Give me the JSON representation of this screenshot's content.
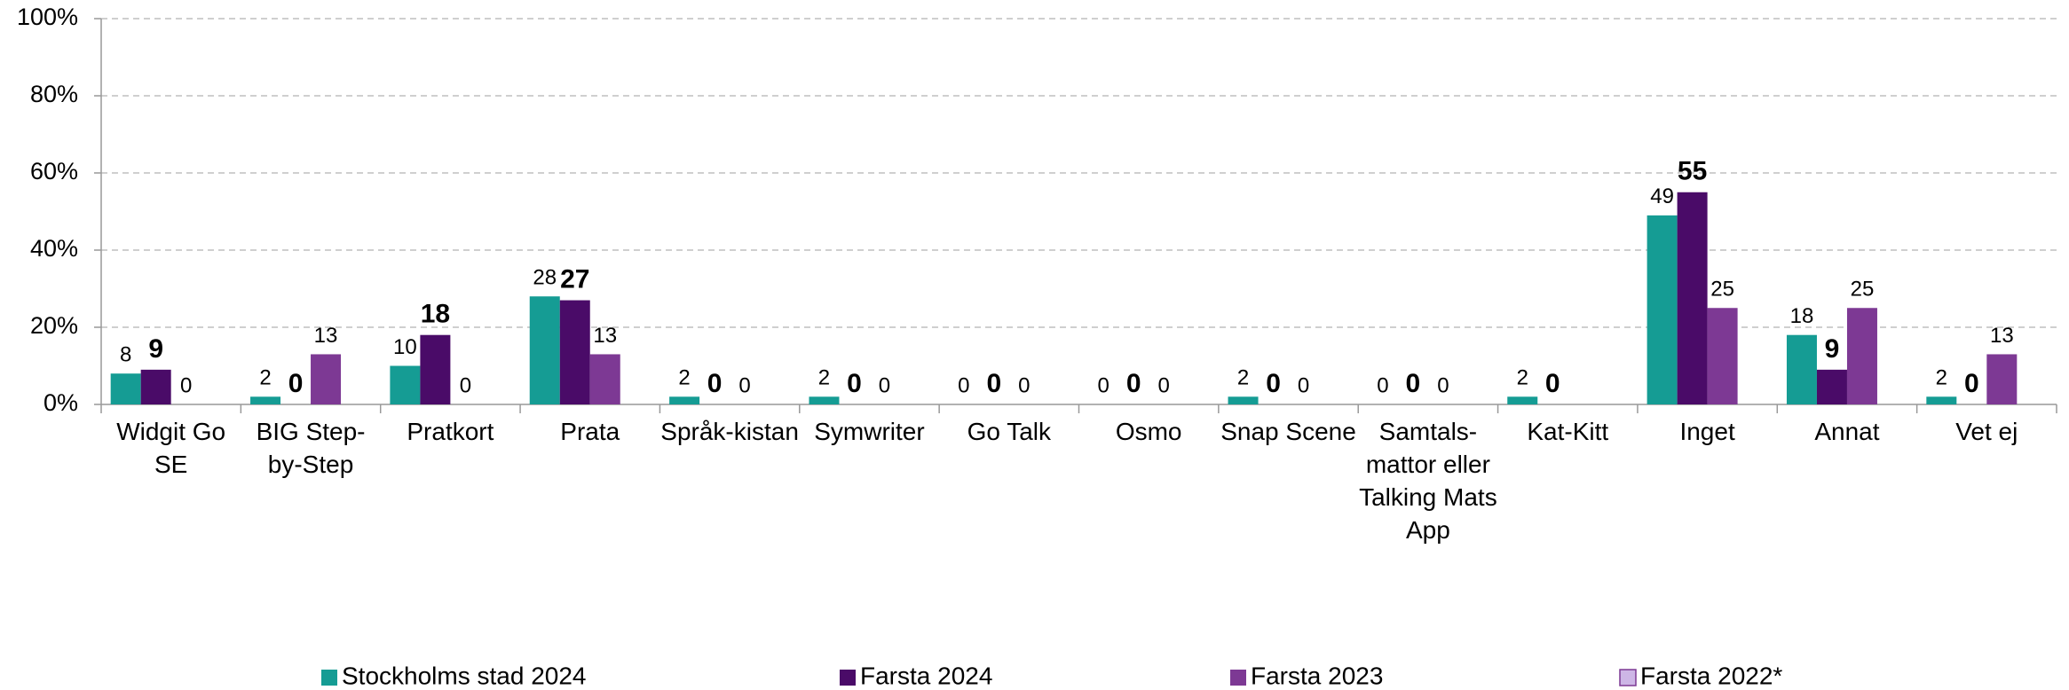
{
  "chart_data": {
    "type": "bar",
    "categories": [
      "Widgit Go SE",
      "BIG Step-by-Step",
      "Pratkort",
      "Prata",
      "Språk-kistan",
      "Symwriter",
      "Go Talk",
      "Osmo",
      "Snap Scene",
      "Samtals-mattor eller Talking Mats App",
      "Kat-Kitt",
      "Inget",
      "Annat",
      "Vet ej"
    ],
    "series": [
      {
        "name": "Stockholms stad 2024",
        "color": "#159c94",
        "values": [
          8,
          2,
          10,
          28,
          2,
          2,
          0,
          0,
          2,
          0,
          2,
          49,
          18,
          2
        ]
      },
      {
        "name": "Farsta 2024",
        "color": "#4a0b68",
        "values": [
          9,
          0,
          18,
          27,
          0,
          0,
          0,
          0,
          0,
          0,
          0,
          55,
          9,
          0
        ]
      },
      {
        "name": "Farsta 2023",
        "color": "#7d3994",
        "values": [
          0,
          13,
          0,
          13,
          0,
          0,
          0,
          0,
          0,
          0,
          null,
          25,
          25,
          13
        ]
      },
      {
        "name": "Farsta 2022*",
        "color": "#cdb6e6",
        "values": [
          null,
          null,
          null,
          null,
          null,
          null,
          null,
          null,
          null,
          null,
          null,
          null,
          null,
          null
        ]
      }
    ],
    "ylim": [
      0,
      100
    ],
    "yticks": [
      {
        "value": 0,
        "label": "0%"
      },
      {
        "value": 20,
        "label": "20%"
      },
      {
        "value": 40,
        "label": "40%"
      },
      {
        "value": 60,
        "label": "60%"
      },
      {
        "value": 80,
        "label": "80%"
      },
      {
        "value": 100,
        "label": "100%"
      }
    ],
    "grid": true,
    "legend": "bottom"
  }
}
